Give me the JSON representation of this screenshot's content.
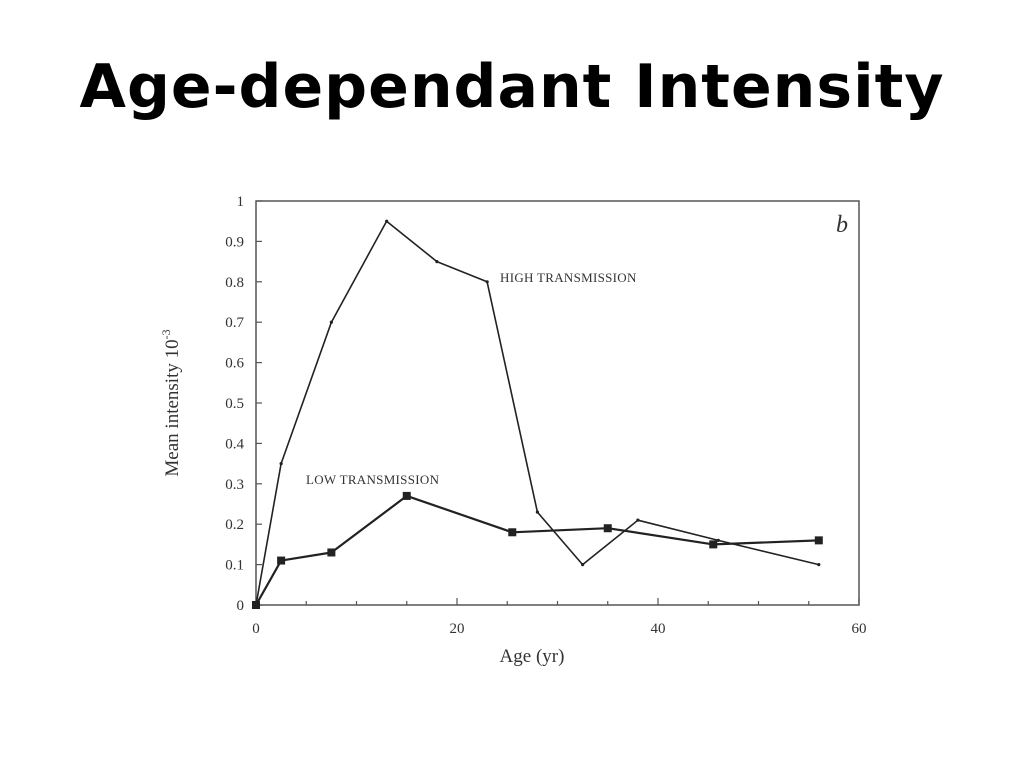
{
  "slide": {
    "title": "Age-dependant Intensity"
  },
  "chart_data": {
    "type": "line",
    "panel_label": "b",
    "xlabel": "Age (yr)",
    "ylabel": "Mean intensity 10",
    "ylabel_exp": "-3",
    "xlim": [
      0,
      60
    ],
    "ylim": [
      0,
      1
    ],
    "xticks": [
      0,
      20,
      40,
      60
    ],
    "yticks": [
      0,
      0.1,
      0.2,
      0.3,
      0.4,
      0.5,
      0.6,
      0.7,
      0.8,
      0.9,
      1
    ],
    "ytick_labels": [
      "0",
      "0.1",
      "0.2",
      "0.3",
      "0.4",
      "0.5",
      "0.6",
      "0.7",
      "0.8",
      "0.9",
      "1"
    ],
    "xtick_labels": [
      "0",
      "20",
      "40",
      "60"
    ],
    "grid": false,
    "series": [
      {
        "name": "HIGH TRANSMISSION",
        "marker": "none",
        "x": [
          0,
          2.5,
          7.5,
          13,
          18,
          23,
          28,
          32.5,
          38,
          46,
          56
        ],
        "y": [
          0,
          0.35,
          0.7,
          0.95,
          0.85,
          0.8,
          0.23,
          0.1,
          0.21,
          0.16,
          0.1
        ]
      },
      {
        "name": "LOW TRANSMISSION",
        "marker": "square",
        "x": [
          0,
          2.5,
          7.5,
          15,
          25.5,
          35,
          45.5,
          56
        ],
        "y": [
          0,
          0.11,
          0.13,
          0.27,
          0.18,
          0.19,
          0.15,
          0.16
        ]
      }
    ]
  }
}
